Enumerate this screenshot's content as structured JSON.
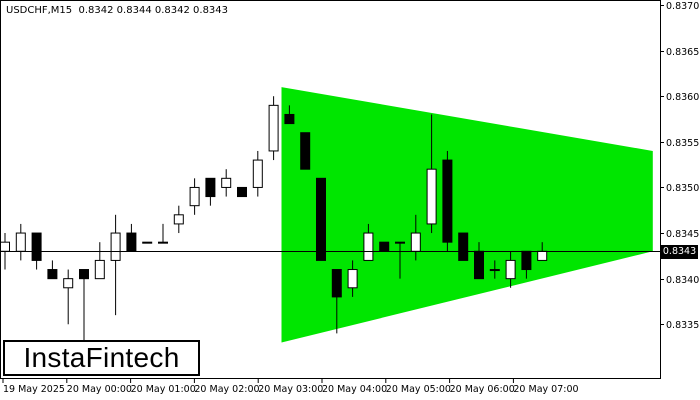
{
  "header": {
    "symbol": "USDCHF,M15",
    "ohlc": "0.8342 0.8344 0.8342 0.8343"
  },
  "logo": {
    "text": "InstaFintech"
  },
  "current_price_label": "0.8343",
  "colors": {
    "bull_candle": "#ffffff",
    "bear_candle": "#000000",
    "pattern_fill": "#00e600",
    "axis": "#000000"
  },
  "chart_data": {
    "type": "candlestick",
    "symbol": "USDCHF",
    "timeframe": "M15",
    "ylim": [
      0.8329,
      0.837
    ],
    "y_ticks": [
      "0.8335",
      "0.8340",
      "0.8345",
      "0.8350",
      "0.8355",
      "0.8360",
      "0.8365",
      "0.8370"
    ],
    "x_ticks": [
      "19 May 2025",
      "20 May 00:00",
      "20 May 01:00",
      "20 May 02:00",
      "20 May 03:00",
      "20 May 04:00",
      "20 May 05:00",
      "20 May 06:00",
      "20 May 07:00"
    ],
    "candles": [
      {
        "o": 0.8343,
        "h": 0.8345,
        "l": 0.8341,
        "c": 0.8344
      },
      {
        "o": 0.8343,
        "h": 0.8346,
        "l": 0.8342,
        "c": 0.8345
      },
      {
        "o": 0.8345,
        "h": 0.8345,
        "l": 0.8341,
        "c": 0.8342
      },
      {
        "o": 0.8341,
        "h": 0.8342,
        "l": 0.834,
        "c": 0.834
      },
      {
        "o": 0.8339,
        "h": 0.8341,
        "l": 0.8335,
        "c": 0.834
      },
      {
        "o": 0.8341,
        "h": 0.8341,
        "l": 0.833,
        "c": 0.834
      },
      {
        "o": 0.834,
        "h": 0.8344,
        "l": 0.834,
        "c": 0.8342
      },
      {
        "o": 0.8342,
        "h": 0.8347,
        "l": 0.8336,
        "c": 0.8345
      },
      {
        "o": 0.8345,
        "h": 0.8346,
        "l": 0.8343,
        "c": 0.8343
      },
      {
        "o": 0.8344,
        "h": 0.8344,
        "l": 0.8344,
        "c": 0.8344
      },
      {
        "o": 0.8344,
        "h": 0.8346,
        "l": 0.8344,
        "c": 0.8344
      },
      {
        "o": 0.8346,
        "h": 0.8348,
        "l": 0.8345,
        "c": 0.8347
      },
      {
        "o": 0.8348,
        "h": 0.8351,
        "l": 0.8347,
        "c": 0.835
      },
      {
        "o": 0.8351,
        "h": 0.8351,
        "l": 0.8348,
        "c": 0.8349
      },
      {
        "o": 0.835,
        "h": 0.8352,
        "l": 0.8349,
        "c": 0.8351
      },
      {
        "o": 0.835,
        "h": 0.835,
        "l": 0.8349,
        "c": 0.8349
      },
      {
        "o": 0.835,
        "h": 0.8354,
        "l": 0.8349,
        "c": 0.8353
      },
      {
        "o": 0.8354,
        "h": 0.836,
        "l": 0.8353,
        "c": 0.8359
      },
      {
        "o": 0.8358,
        "h": 0.8359,
        "l": 0.8357,
        "c": 0.8357
      },
      {
        "o": 0.8356,
        "h": 0.8356,
        "l": 0.8352,
        "c": 0.8352
      },
      {
        "o": 0.8351,
        "h": 0.8351,
        "l": 0.8342,
        "c": 0.8342
      },
      {
        "o": 0.8341,
        "h": 0.8341,
        "l": 0.8334,
        "c": 0.8338
      },
      {
        "o": 0.8339,
        "h": 0.8342,
        "l": 0.8338,
        "c": 0.8341
      },
      {
        "o": 0.8342,
        "h": 0.8346,
        "l": 0.8342,
        "c": 0.8345
      },
      {
        "o": 0.8344,
        "h": 0.8344,
        "l": 0.8343,
        "c": 0.8343
      },
      {
        "o": 0.8344,
        "h": 0.8344,
        "l": 0.834,
        "c": 0.8344
      },
      {
        "o": 0.8343,
        "h": 0.8347,
        "l": 0.8342,
        "c": 0.8345
      },
      {
        "o": 0.8346,
        "h": 0.8358,
        "l": 0.8345,
        "c": 0.8352
      },
      {
        "o": 0.8353,
        "h": 0.8354,
        "l": 0.8343,
        "c": 0.8344
      },
      {
        "o": 0.8345,
        "h": 0.8345,
        "l": 0.8342,
        "c": 0.8342
      },
      {
        "o": 0.8343,
        "h": 0.8344,
        "l": 0.834,
        "c": 0.834
      },
      {
        "o": 0.8341,
        "h": 0.8342,
        "l": 0.834,
        "c": 0.8341
      },
      {
        "o": 0.834,
        "h": 0.8343,
        "l": 0.8339,
        "c": 0.8342
      },
      {
        "o": 0.8343,
        "h": 0.8343,
        "l": 0.834,
        "c": 0.8341
      },
      {
        "o": 0.8342,
        "h": 0.8344,
        "l": 0.8342,
        "c": 0.8343
      }
    ],
    "current_price": 0.8343,
    "pattern": {
      "type": "symmetrical triangle",
      "upper": [
        [
          17.5,
          0.8361
        ],
        [
          41.0,
          0.8354
        ]
      ],
      "lower": [
        [
          17.5,
          0.8333
        ],
        [
          41.0,
          0.8343
        ]
      ]
    }
  }
}
